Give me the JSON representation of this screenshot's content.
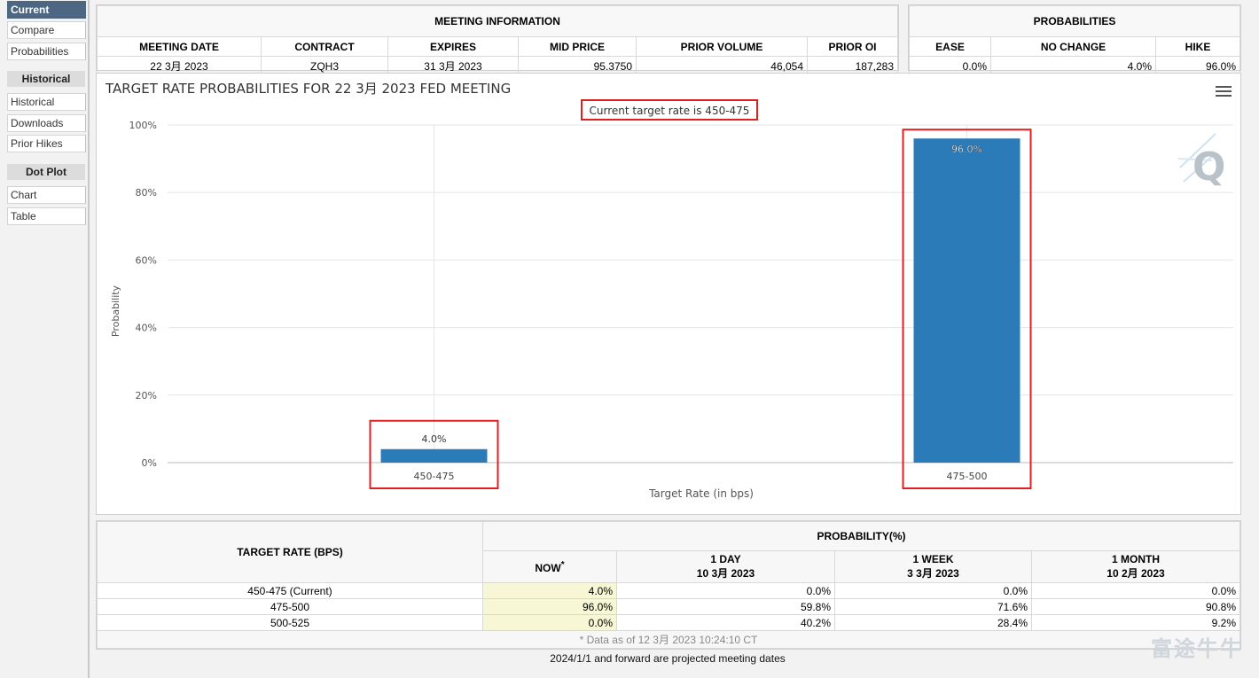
{
  "sidebar": {
    "items_top": [
      "Current",
      "Compare",
      "Probabilities"
    ],
    "historical_header": "Historical",
    "items_hist": [
      "Historical",
      "Downloads",
      "Prior Hikes"
    ],
    "dotplot_header": "Dot Plot",
    "items_dot": [
      "Chart",
      "Table"
    ]
  },
  "meeting_info": {
    "title": "MEETING INFORMATION",
    "headers": [
      "MEETING DATE",
      "CONTRACT",
      "EXPIRES",
      "MID PRICE",
      "PRIOR VOLUME",
      "PRIOR OI"
    ],
    "values": [
      "22 3月 2023",
      "ZQH3",
      "31 3月 2023",
      "95.3750",
      "46,054",
      "187,283"
    ]
  },
  "probabilities": {
    "title": "PROBABILITIES",
    "headers": [
      "EASE",
      "NO CHANGE",
      "HIKE"
    ],
    "values": [
      "0.0%",
      "4.0%",
      "96.0%"
    ]
  },
  "chart_data": {
    "type": "bar",
    "title": "TARGET RATE PROBABILITIES FOR 22 3月 2023 FED MEETING",
    "subtitle": "Current target rate is 450-475",
    "categories": [
      "450-475",
      "475-500"
    ],
    "values": [
      4.0,
      96.0
    ],
    "data_labels": [
      "4.0%",
      "96.0%"
    ],
    "xlabel": "Target Rate (in bps)",
    "ylabel": "Probability",
    "ylim": [
      0,
      100
    ],
    "yticks": [
      "0%",
      "20%",
      "40%",
      "60%",
      "80%",
      "100%"
    ],
    "grid": true,
    "bar_color": "#2b7bb9",
    "highlight_color": "#e02020"
  },
  "rate_table": {
    "col_target": "TARGET RATE (BPS)",
    "col_prob": "PROBABILITY(%)",
    "col_now": "NOW",
    "now_mark": "*",
    "col_1day": [
      "1 DAY",
      "10 3月 2023"
    ],
    "col_1week": [
      "1 WEEK",
      "3 3月 2023"
    ],
    "col_1month": [
      "1 MONTH",
      "10 2月 2023"
    ],
    "rows": [
      {
        "rate": "450-475 (Current)",
        "now": "4.0%",
        "day": "0.0%",
        "week": "0.0%",
        "month": "0.0%"
      },
      {
        "rate": "475-500",
        "now": "96.0%",
        "day": "59.8%",
        "week": "71.6%",
        "month": "90.8%"
      },
      {
        "rate": "500-525",
        "now": "0.0%",
        "day": "40.2%",
        "week": "28.4%",
        "month": "9.2%"
      }
    ],
    "footnote": "* Data as of 12 3月 2023 10:24:10 CT"
  },
  "projected_note": "2024/1/1 and forward are projected meeting dates",
  "watermark": "富途牛牛",
  "logo_letter": "Q"
}
